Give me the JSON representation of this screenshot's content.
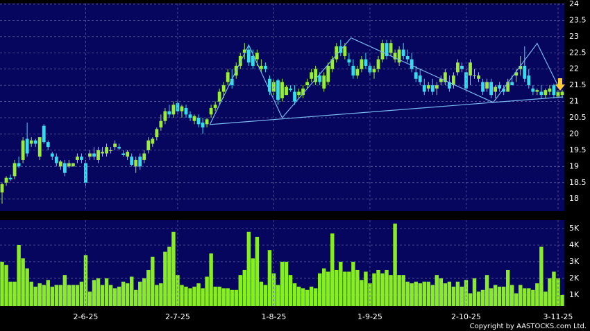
{
  "chart_data": [
    {
      "type": "candlestick",
      "up_color": "#99ee33",
      "down_color": "#33ddee",
      "trend_color": "#7ab8f0",
      "ylim": [
        17.62,
        24.02
      ],
      "yticks": [
        18,
        18.5,
        19,
        19.5,
        20,
        20.5,
        21,
        21.5,
        22,
        22.5,
        23,
        23.5,
        24
      ],
      "grid": true,
      "ohlc": [
        [
          18.2,
          18.5,
          17.85,
          18.45
        ],
        [
          18.5,
          18.7,
          18.4,
          18.65
        ],
        [
          18.65,
          18.75,
          18.55,
          18.6
        ],
        [
          18.7,
          19.2,
          18.6,
          19.1
        ],
        [
          19.1,
          19.3,
          18.95,
          19.0
        ],
        [
          19.2,
          19.9,
          19.1,
          19.8
        ],
        [
          19.85,
          20.35,
          19.3,
          19.4
        ],
        [
          19.7,
          19.9,
          19.6,
          19.8
        ],
        [
          19.8,
          19.85,
          19.6,
          19.7
        ],
        [
          19.3,
          19.9,
          19.2,
          19.9
        ],
        [
          20.25,
          20.3,
          19.7,
          19.75
        ],
        [
          19.75,
          19.8,
          19.5,
          19.6
        ],
        [
          19.4,
          19.45,
          19.2,
          19.3
        ],
        [
          19.3,
          19.4,
          19.0,
          19.1
        ],
        [
          19.0,
          19.2,
          18.9,
          19.15
        ],
        [
          19.1,
          19.2,
          18.7,
          18.8
        ],
        [
          19.0,
          19.2,
          18.95,
          19.1
        ],
        [
          19.0,
          19.1,
          19.0,
          19.1
        ],
        [
          19.2,
          19.4,
          19.1,
          19.3
        ],
        [
          19.3,
          19.4,
          19.1,
          19.2
        ],
        [
          19.1,
          19.2,
          18.4,
          18.5
        ],
        [
          19.3,
          19.5,
          19.2,
          19.4
        ],
        [
          19.4,
          19.6,
          19.2,
          19.3
        ],
        [
          19.2,
          19.6,
          19.1,
          19.5
        ],
        [
          19.4,
          19.6,
          19.3,
          19.45
        ],
        [
          19.4,
          19.7,
          19.3,
          19.6
        ],
        [
          19.5,
          19.6,
          19.4,
          19.5
        ],
        [
          19.6,
          19.8,
          19.5,
          19.7
        ],
        [
          19.6,
          19.7,
          19.5,
          19.55
        ],
        [
          19.4,
          19.5,
          19.3,
          19.35
        ],
        [
          19.3,
          19.5,
          19.2,
          19.45
        ],
        [
          19.3,
          19.4,
          19.0,
          19.05
        ],
        [
          19.0,
          19.3,
          18.8,
          19.2
        ],
        [
          19.3,
          19.4,
          18.9,
          19.0
        ],
        [
          19.2,
          19.5,
          19.1,
          19.4
        ],
        [
          19.5,
          19.9,
          19.4,
          19.8
        ],
        [
          19.7,
          19.9,
          19.6,
          19.85
        ],
        [
          19.9,
          20.2,
          19.8,
          20.15
        ],
        [
          20.2,
          20.6,
          20.1,
          20.4
        ],
        [
          20.4,
          20.8,
          20.3,
          20.7
        ],
        [
          20.7,
          20.9,
          20.5,
          20.6
        ],
        [
          20.6,
          21.0,
          20.5,
          20.9
        ],
        [
          20.95,
          21.05,
          20.6,
          20.7
        ],
        [
          20.7,
          20.9,
          20.5,
          20.85
        ],
        [
          20.8,
          20.9,
          20.5,
          20.6
        ],
        [
          20.6,
          20.7,
          20.4,
          20.5
        ],
        [
          20.4,
          20.6,
          20.3,
          20.55
        ],
        [
          20.5,
          20.6,
          20.2,
          20.3
        ],
        [
          20.35,
          20.5,
          20.0,
          20.2
        ],
        [
          20.3,
          20.5,
          20.2,
          20.45
        ],
        [
          20.6,
          20.9,
          20.5,
          20.8
        ],
        [
          20.8,
          21.0,
          20.7,
          20.9
        ],
        [
          21.0,
          21.4,
          20.9,
          21.3
        ],
        [
          21.3,
          21.6,
          21.1,
          21.5
        ],
        [
          21.6,
          22.0,
          21.5,
          21.9
        ],
        [
          21.7,
          22.0,
          21.4,
          21.5
        ],
        [
          21.8,
          22.2,
          21.7,
          22.1
        ],
        [
          22.1,
          22.5,
          22.0,
          22.4
        ],
        [
          22.5,
          22.8,
          22.3,
          22.6
        ],
        [
          22.6,
          22.7,
          22.1,
          22.2
        ],
        [
          22.4,
          22.6,
          22.0,
          22.1
        ],
        [
          22.3,
          22.6,
          22.1,
          22.5
        ],
        [
          22.0,
          22.3,
          21.9,
          22.1
        ],
        [
          22.1,
          22.2,
          21.9,
          22.0
        ],
        [
          21.7,
          21.8,
          21.2,
          21.3
        ],
        [
          21.3,
          21.7,
          21.2,
          21.6
        ],
        [
          21.65,
          21.7,
          20.9,
          21.05
        ],
        [
          21.1,
          21.7,
          21.0,
          21.6
        ],
        [
          21.2,
          21.5,
          21.2,
          21.45
        ],
        [
          21.4,
          21.5,
          21.3,
          21.35
        ],
        [
          21.3,
          21.5,
          20.9,
          21.0
        ],
        [
          21.2,
          21.4,
          21.1,
          21.3
        ],
        [
          21.2,
          21.5,
          21.1,
          21.4
        ],
        [
          21.5,
          21.7,
          21.4,
          21.6
        ],
        [
          21.7,
          22.0,
          21.6,
          21.9
        ],
        [
          21.6,
          22.1,
          21.5,
          22.0
        ],
        [
          21.8,
          21.9,
          21.5,
          21.6
        ],
        [
          21.4,
          21.9,
          21.3,
          21.8
        ],
        [
          21.6,
          22.2,
          21.5,
          22.1
        ],
        [
          22.0,
          22.4,
          21.9,
          22.3
        ],
        [
          22.3,
          22.8,
          22.2,
          22.7
        ],
        [
          22.7,
          22.9,
          22.4,
          22.5
        ],
        [
          22.4,
          22.8,
          22.3,
          22.7
        ],
        [
          22.3,
          22.5,
          22.1,
          22.2
        ],
        [
          22.1,
          22.3,
          21.7,
          21.8
        ],
        [
          21.8,
          22.1,
          21.7,
          22.0
        ],
        [
          22.0,
          22.4,
          21.9,
          22.3
        ],
        [
          22.3,
          22.5,
          22.0,
          22.1
        ],
        [
          22.1,
          22.2,
          21.8,
          21.9
        ],
        [
          21.9,
          22.1,
          21.7,
          22.0
        ],
        [
          22.0,
          22.4,
          21.9,
          22.3
        ],
        [
          22.3,
          22.9,
          22.2,
          22.8
        ],
        [
          22.8,
          22.9,
          22.3,
          22.4
        ],
        [
          22.5,
          22.9,
          22.4,
          22.8
        ],
        [
          22.3,
          22.6,
          22.2,
          22.5
        ],
        [
          22.2,
          22.7,
          22.1,
          22.6
        ],
        [
          22.6,
          22.8,
          22.3,
          22.4
        ],
        [
          22.4,
          22.6,
          22.2,
          22.3
        ],
        [
          22.3,
          22.5,
          21.9,
          22.0
        ],
        [
          21.9,
          22.1,
          21.6,
          21.7
        ],
        [
          21.8,
          22.0,
          21.5,
          21.6
        ],
        [
          21.5,
          21.7,
          21.2,
          21.3
        ],
        [
          21.4,
          21.6,
          21.3,
          21.5
        ],
        [
          21.5,
          21.7,
          21.2,
          21.3
        ],
        [
          21.4,
          21.6,
          21.2,
          21.5
        ],
        [
          21.6,
          21.8,
          21.5,
          21.7
        ],
        [
          21.6,
          22.0,
          21.5,
          21.9
        ],
        [
          21.6,
          21.8,
          21.3,
          21.4
        ],
        [
          21.5,
          21.9,
          21.4,
          21.8
        ],
        [
          21.9,
          22.3,
          21.8,
          22.2
        ],
        [
          22.1,
          22.2,
          21.9,
          22.0
        ],
        [
          21.9,
          22.0,
          21.3,
          21.4
        ],
        [
          21.8,
          22.3,
          21.5,
          22.2
        ],
        [
          21.8,
          22.0,
          21.7,
          21.8
        ],
        [
          21.7,
          21.9,
          21.6,
          21.8
        ],
        [
          21.6,
          21.7,
          21.2,
          21.3
        ],
        [
          21.4,
          21.7,
          21.3,
          21.6
        ],
        [
          21.6,
          21.7,
          21.1,
          21.2
        ],
        [
          21.3,
          21.5,
          21.1,
          21.45
        ],
        [
          21.5,
          21.6,
          21.3,
          21.4
        ],
        [
          21.4,
          21.5,
          21.2,
          21.3
        ],
        [
          21.3,
          21.7,
          21.3,
          21.6
        ],
        [
          21.6,
          21.8,
          21.5,
          21.5
        ],
        [
          21.8,
          22.0,
          21.6,
          21.9
        ],
        [
          22.0,
          22.4,
          21.8,
          22.1
        ],
        [
          22.1,
          22.7,
          21.6,
          21.7
        ],
        [
          21.8,
          22.0,
          21.4,
          21.5
        ],
        [
          21.4,
          21.5,
          21.2,
          21.3
        ],
        [
          21.3,
          21.4,
          21.2,
          21.35
        ],
        [
          21.3,
          21.5,
          21.1,
          21.2
        ],
        [
          21.2,
          21.4,
          21.1,
          21.35
        ],
        [
          21.3,
          21.5,
          21.2,
          21.4
        ],
        [
          21.5,
          21.55,
          21.1,
          21.2
        ],
        [
          21.15,
          21.35,
          21.1,
          21.3
        ],
        [
          21.2,
          21.35,
          21.1,
          21.3
        ]
      ],
      "trendlines": [
        {
          "x": [
            49.7,
            59,
            67,
            83.5,
            117.5,
            128,
            133.5
          ],
          "y": [
            20.29,
            22.74,
            20.5,
            22.96,
            20.97,
            22.79,
            21.35
          ]
        },
        {
          "x": [
            49.7,
            134.2
          ],
          "y": [
            20.29,
            21.14
          ]
        }
      ]
    },
    {
      "type": "bar",
      "color": "#88ee22",
      "ylim": [
        0.33,
        5.5
      ],
      "yticks": [
        {
          "value": 1,
          "label": "1K"
        },
        {
          "value": 2,
          "label": "2K"
        },
        {
          "value": 3,
          "label": "3K"
        },
        {
          "value": 4,
          "label": "4K"
        },
        {
          "value": 5,
          "label": "5K"
        }
      ],
      "grid": true,
      "categories": [
        null,
        null,
        null,
        null,
        null,
        null,
        null,
        null,
        null,
        null,
        null,
        null,
        null,
        null,
        null,
        null,
        null,
        null,
        null,
        null,
        "2-6-25",
        null,
        null,
        null,
        null,
        null,
        null,
        null,
        null,
        null,
        null,
        null,
        null,
        null,
        null,
        null,
        null,
        null,
        null,
        null,
        null,
        null,
        "2-7-25",
        null,
        null,
        null,
        null,
        null,
        null,
        null,
        null,
        null,
        null,
        null,
        null,
        null,
        null,
        null,
        null,
        null,
        null,
        null,
        null,
        null,
        null,
        "1-8-25",
        null,
        null,
        null,
        null,
        null,
        null,
        null,
        null,
        null,
        null,
        null,
        null,
        null,
        null,
        null,
        null,
        null,
        null,
        null,
        null,
        null,
        null,
        "1-9-25",
        null,
        null,
        null,
        null,
        null,
        null,
        null,
        null,
        null,
        null,
        null,
        null,
        null,
        null,
        null,
        null,
        null,
        null,
        null,
        null,
        null,
        null,
        "2-10-25",
        null,
        null,
        null,
        null,
        null,
        null,
        null,
        null,
        null,
        null,
        null,
        null,
        null,
        null,
        null,
        null,
        null,
        null,
        null,
        null,
        null,
        "3-11-25",
        null
      ],
      "values": [
        3.0,
        2.8,
        1.8,
        1.8,
        4.0,
        3.2,
        2.6,
        1.8,
        1.5,
        1.7,
        1.6,
        1.9,
        1.5,
        1.6,
        1.6,
        2.2,
        1.6,
        1.6,
        1.6,
        1.8,
        3.4,
        1.2,
        1.9,
        2.0,
        1.6,
        2.0,
        1.6,
        1.4,
        1.5,
        1.8,
        1.7,
        2.1,
        1.3,
        1.8,
        2.0,
        2.5,
        3.3,
        1.6,
        1.7,
        3.6,
        3.9,
        4.8,
        2.2,
        1.6,
        1.5,
        1.4,
        1.5,
        1.7,
        1.4,
        2.1,
        3.5,
        1.5,
        1.5,
        1.4,
        1.4,
        1.3,
        1.3,
        2.2,
        2.5,
        4.8,
        3.2,
        4.5,
        1.8,
        1.6,
        3.7,
        2.3,
        1.6,
        3.0,
        3.0,
        2.2,
        1.7,
        1.5,
        1.4,
        1.3,
        1.5,
        1.4,
        2.3,
        2.6,
        2.4,
        4.7,
        2.5,
        3.0,
        2.4,
        2.4,
        3.0,
        2.5,
        1.9,
        2.4,
        1.7,
        2.3,
        2.5,
        2.3,
        2.5,
        2.2,
        5.3,
        2.2,
        2.2,
        1.8,
        1.7,
        1.8,
        1.7,
        1.8,
        1.8,
        1.6,
        2.2,
        2.0,
        1.7,
        1.8,
        1.5,
        1.8,
        1.5,
        1.9,
        1.1,
        2.0,
        1.2,
        1.3,
        2.2,
        1.4,
        1.6,
        1.5,
        1.5,
        2.5,
        1.6,
        1.1,
        1.6,
        1.4,
        1.4,
        1.3,
        1.7,
        3.9,
        1.2,
        2.0,
        2.4,
        2.0,
        1.0
      ]
    }
  ],
  "footer": "Copyright by AASTOCKS.com Ltd."
}
